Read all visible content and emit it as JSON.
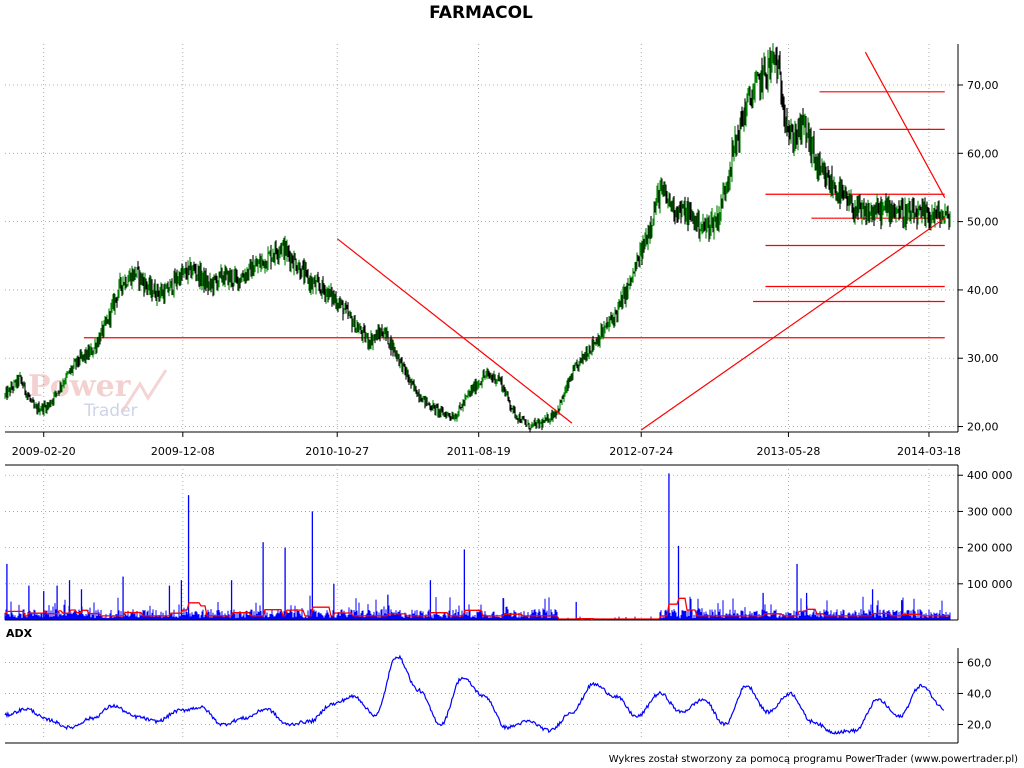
{
  "window": {
    "title": "FARMACOL",
    "footer": "Wykres został stworzony za pomocą programu PowerTrader (www.powertrader.pl)"
  },
  "watermark": {
    "line1": "Power",
    "line2": "Trader"
  },
  "colors": {
    "price_up": "#008000",
    "price_down": "#000000",
    "trendline": "#ff0000",
    "volume": "#0000ff",
    "volume_avg": "#ff0000",
    "adx": "#0000ff",
    "grid": "#9a9a9a"
  },
  "panels": {
    "price_label": "",
    "volume_label": "",
    "adx_label": "ADX"
  },
  "chart_data": [
    {
      "type": "line",
      "name": "price",
      "title": "FARMACOL",
      "xlabel": "",
      "ylabel": "",
      "x_domain": [
        "2008-12-01",
        "2014-05-01"
      ],
      "x_ticks": [
        "2009-02-20",
        "2009-12-08",
        "2010-10-27",
        "2011-08-19",
        "2012-07-24",
        "2013-05-28",
        "2014-03-18"
      ],
      "y_ticks": [
        "20,00",
        "30,00",
        "40,00",
        "50,00",
        "60,00",
        "70,00"
      ],
      "ylim": [
        19.2,
        76
      ],
      "grid": true,
      "series": [
        {
          "x": [
            "2008-12-01",
            "2009-01-01",
            "2009-02-01",
            "2009-03-01",
            "2009-04-01",
            "2009-05-01",
            "2009-06-01",
            "2009-07-01",
            "2009-08-01",
            "2009-09-01",
            "2009-10-01",
            "2009-11-01",
            "2009-12-01",
            "2010-01-01",
            "2010-02-01",
            "2010-03-01",
            "2010-04-01",
            "2010-05-01",
            "2010-06-01",
            "2010-07-01",
            "2010-08-01",
            "2010-09-01",
            "2010-10-01",
            "2010-11-01",
            "2010-12-01",
            "2011-01-01",
            "2011-02-01",
            "2011-03-01",
            "2011-04-01",
            "2011-05-01",
            "2011-06-01",
            "2011-07-01",
            "2011-08-01",
            "2011-09-01",
            "2011-10-01",
            "2011-11-01",
            "2011-12-01",
            "2012-01-01",
            "2012-02-01",
            "2012-03-01",
            "2012-04-01",
            "2012-05-01",
            "2012-06-01",
            "2012-07-01",
            "2012-08-01",
            "2012-09-01",
            "2012-10-01",
            "2012-11-01",
            "2012-12-01",
            "2013-01-01",
            "2013-02-01",
            "2013-03-01",
            "2013-04-01",
            "2013-05-01",
            "2013-06-01",
            "2013-07-01",
            "2013-08-01",
            "2013-09-01",
            "2013-10-01",
            "2013-11-01",
            "2013-12-01",
            "2014-01-01",
            "2014-02-01",
            "2014-03-01",
            "2014-04-01",
            "2014-05-01"
          ],
          "values": [
            24.5,
            27.0,
            22.5,
            23.0,
            26.5,
            29.5,
            31.0,
            35.0,
            41.0,
            42.5,
            40.0,
            39.5,
            42.0,
            43.0,
            40.5,
            42.0,
            41.5,
            43.0,
            44.5,
            46.5,
            44.0,
            41.0,
            40.0,
            38.0,
            35.0,
            32.5,
            34.0,
            30.5,
            26.0,
            23.5,
            22.0,
            21.5,
            25.0,
            27.5,
            27.0,
            22.0,
            20.0,
            20.5,
            22.5,
            27.5,
            31.0,
            33.5,
            36.5,
            41.0,
            47.0,
            54.5,
            52.0,
            51.0,
            49.0,
            50.5,
            60.0,
            67.0,
            71.0,
            74.0,
            62.0,
            64.0,
            57.0,
            55.0,
            52.5,
            51.0,
            51.5,
            52.0,
            51.0,
            50.8,
            51.0,
            50.5
          ]
        }
      ],
      "trendlines": [
        {
          "from": [
            "2010-10-27",
            47.5
          ],
          "to": [
            "2012-03-01",
            20.5
          ]
        },
        {
          "from": [
            "2012-07-24",
            19.5
          ],
          "to": [
            "2014-04-20",
            50.5
          ]
        },
        {
          "from": [
            "2013-11-05",
            74.8
          ],
          "to": [
            "2014-04-20",
            53.5
          ]
        }
      ],
      "horizontal_levels": [
        {
          "value": 33.0,
          "from": "2009-05-15",
          "to": "2014-04-20"
        },
        {
          "value": 38.3,
          "from": "2013-03-15",
          "to": "2014-04-20"
        },
        {
          "value": 40.5,
          "from": "2013-04-10",
          "to": "2014-04-20"
        },
        {
          "value": 46.5,
          "from": "2013-04-10",
          "to": "2014-04-20"
        },
        {
          "value": 50.5,
          "from": "2013-07-15",
          "to": "2014-04-20"
        },
        {
          "value": 54.0,
          "from": "2013-04-10",
          "to": "2014-04-20"
        },
        {
          "value": 63.5,
          "from": "2013-08-01",
          "to": "2014-04-20"
        },
        {
          "value": 69.0,
          "from": "2013-08-01",
          "to": "2014-04-20"
        }
      ]
    },
    {
      "type": "bar",
      "name": "volume",
      "y_ticks": [
        "100 000",
        "200 000",
        "300 000",
        "400 000"
      ],
      "ylim": [
        0,
        420000
      ],
      "baseline": 25000,
      "spikes": [
        {
          "x": "2008-12-05",
          "value": 155000
        },
        {
          "x": "2009-01-20",
          "value": 95000
        },
        {
          "x": "2009-02-20",
          "value": 80000
        },
        {
          "x": "2009-03-20",
          "value": 95000
        },
        {
          "x": "2009-04-15",
          "value": 110000
        },
        {
          "x": "2009-05-10",
          "value": 85000
        },
        {
          "x": "2009-08-05",
          "value": 120000
        },
        {
          "x": "2009-11-10",
          "value": 95000
        },
        {
          "x": "2009-12-05",
          "value": 110000
        },
        {
          "x": "2009-12-20",
          "value": 345000
        },
        {
          "x": "2010-03-20",
          "value": 110000
        },
        {
          "x": "2010-05-25",
          "value": 215000
        },
        {
          "x": "2010-07-10",
          "value": 200000
        },
        {
          "x": "2010-09-05",
          "value": 300000
        },
        {
          "x": "2010-10-20",
          "value": 100000
        },
        {
          "x": "2011-02-10",
          "value": 70000
        },
        {
          "x": "2011-05-10",
          "value": 110000
        },
        {
          "x": "2011-07-20",
          "value": 195000
        },
        {
          "x": "2011-10-10",
          "value": 60000
        },
        {
          "x": "2012-03-10",
          "value": 50000
        },
        {
          "x": "2012-09-20",
          "value": 405000
        },
        {
          "x": "2012-10-10",
          "value": 205000
        },
        {
          "x": "2013-04-05",
          "value": 75000
        },
        {
          "x": "2013-06-15",
          "value": 155000
        },
        {
          "x": "2013-07-05",
          "value": 75000
        },
        {
          "x": "2013-11-20",
          "value": 85000
        },
        {
          "x": "2014-01-20",
          "value": 55000
        }
      ]
    },
    {
      "type": "line",
      "name": "ADX",
      "y_ticks": [
        "20,0",
        "40,0",
        "60,0"
      ],
      "ylim": [
        10,
        68
      ],
      "series": [
        {
          "name": "ADX",
          "x": [
            "2008-12-01",
            "2009-01-15",
            "2009-03-01",
            "2009-04-15",
            "2009-06-01",
            "2009-07-15",
            "2009-09-01",
            "2009-10-15",
            "2009-12-01",
            "2010-01-15",
            "2010-03-01",
            "2010-04-15",
            "2010-06-01",
            "2010-07-15",
            "2010-09-01",
            "2010-10-15",
            "2010-12-01",
            "2011-01-15",
            "2011-03-01",
            "2011-04-15",
            "2011-06-01",
            "2011-07-15",
            "2011-09-01",
            "2011-10-15",
            "2011-12-01",
            "2012-01-15",
            "2012-03-01",
            "2012-04-15",
            "2012-06-01",
            "2012-07-15",
            "2012-09-01",
            "2012-10-15",
            "2012-12-01",
            "2013-01-15",
            "2013-03-01",
            "2013-04-15",
            "2013-06-01",
            "2013-07-15",
            "2013-09-01",
            "2013-10-15",
            "2013-12-01",
            "2014-01-15",
            "2014-03-01",
            "2014-04-20"
          ],
          "values": [
            26,
            30,
            23,
            18,
            24,
            32,
            25,
            22,
            29,
            31,
            20,
            24,
            30,
            20,
            22,
            33,
            38,
            26,
            64,
            42,
            20,
            50,
            38,
            18,
            22,
            16,
            28,
            46,
            38,
            25,
            40,
            28,
            36,
            20,
            45,
            28,
            40,
            22,
            15,
            16,
            36,
            25,
            45,
            30
          ]
        }
      ]
    }
  ]
}
